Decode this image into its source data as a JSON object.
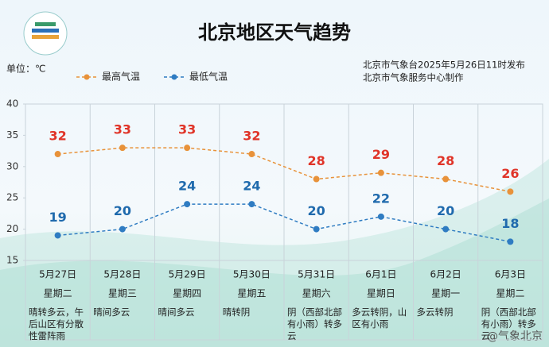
{
  "title": "北京地区天气趋势",
  "unit": "单位：℃",
  "source": [
    "北京市气象台2025年5月26日11时发布",
    "北京市气象服务中心制作"
  ],
  "watermark": "@气象北京",
  "chart_data": {
    "type": "line",
    "categories": [
      "5月27日",
      "5月28日",
      "5月29日",
      "5月30日",
      "5月31日",
      "6月1日",
      "6月2日",
      "6月3日"
    ],
    "weekdays": [
      "星期二",
      "星期三",
      "星期四",
      "星期五",
      "星期六",
      "星期日",
      "星期一",
      "星期二"
    ],
    "weather": [
      "晴转多云，午后山区有分散性雷阵雨",
      "晴间多云",
      "晴间多云",
      "晴转阴",
      "阴（西部北部有小雨）转多云",
      "多云转阴，山区有小雨",
      "多云转阴",
      "阴（西部北部有小雨）转多云"
    ],
    "series": [
      {
        "name": "最高气温",
        "color": "#e8923a",
        "label_color": "#e03428",
        "values": [
          32,
          33,
          33,
          32,
          28,
          29,
          28,
          26
        ]
      },
      {
        "name": "最低气温",
        "color": "#2f7cc2",
        "label_color": "#1f6aad",
        "values": [
          19,
          20,
          24,
          24,
          20,
          22,
          20,
          18
        ]
      }
    ],
    "ylim": [
      15,
      40
    ],
    "yticks": [
      15,
      20,
      25,
      30,
      35,
      40
    ]
  }
}
